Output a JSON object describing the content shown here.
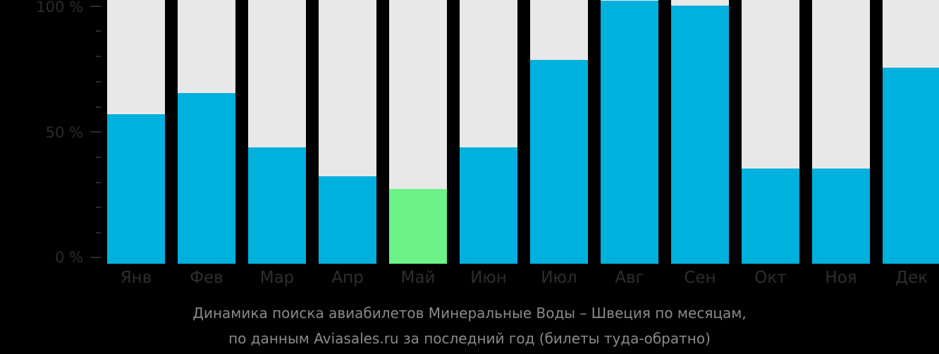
{
  "chart_data": {
    "type": "bar",
    "title": "Динамика поиска авиабилетов Минеральные Воды – Швеция по месяцам,",
    "subtitle": "по данным Aviasales.ru за последний год (билеты туда-обратно)",
    "categories": [
      "Янв",
      "Фев",
      "Мар",
      "Апр",
      "Май",
      "Июн",
      "Июл",
      "Авг",
      "Сен",
      "Окт",
      "Ноя",
      "Дек"
    ],
    "values": [
      58,
      66,
      45,
      34,
      29,
      45,
      79,
      102,
      100,
      37,
      37,
      76
    ],
    "highlight_index": 4,
    "xlabel": "",
    "ylabel": "",
    "ylim": [
      0,
      100
    ],
    "yticks": [
      "0 %",
      "50 %",
      "100 %"
    ],
    "grid": false,
    "legend": null,
    "colors": {
      "bar": "#00b0dd",
      "highlight": "#6cf286",
      "background_bar": "#e8e8e8",
      "page": "#000000"
    }
  },
  "axis": {
    "y_labels": [
      "100 %",
      "50 %",
      "0 %"
    ]
  },
  "caption": {
    "line1": "Динамика поиска авиабилетов Минеральные Воды – Швеция по месяцам,",
    "line2": "по данным Aviasales.ru за последний год (билеты туда-обратно)"
  }
}
